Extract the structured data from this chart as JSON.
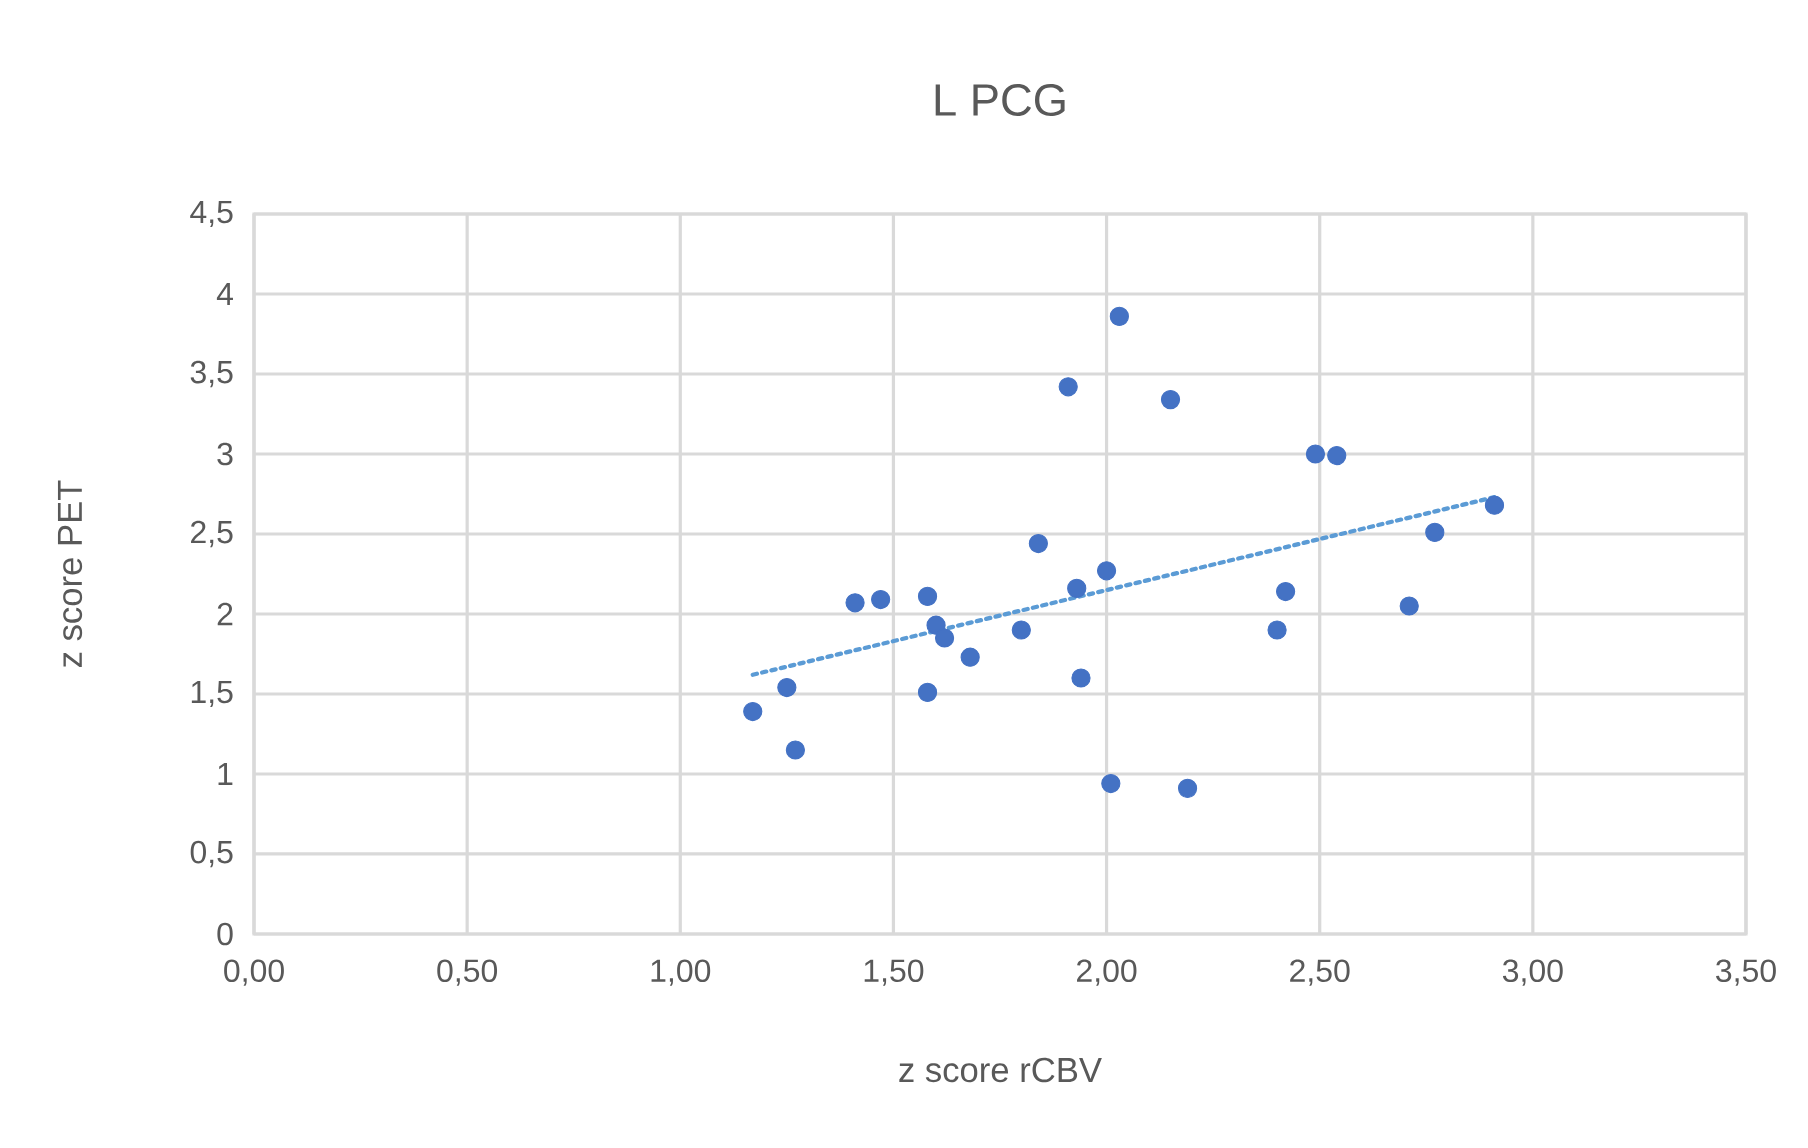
{
  "chart_data": {
    "type": "scatter",
    "title": "L PCG",
    "xlabel": "z score rCBV",
    "ylabel": "z score PET",
    "series": [
      {
        "type": "scatter",
        "color": "#4472c4",
        "marker": "circle",
        "x": [
          1.17,
          1.25,
          1.27,
          1.41,
          1.47,
          1.58,
          1.6,
          1.62,
          1.58,
          1.68,
          1.8,
          1.84,
          1.91,
          1.93,
          1.94,
          2.0,
          2.03,
          2.01,
          2.15,
          2.19,
          2.4,
          2.42,
          2.49,
          2.54,
          2.71,
          2.77,
          2.91
        ],
        "values": [
          1.39,
          1.54,
          1.15,
          2.07,
          2.09,
          2.11,
          1.93,
          1.85,
          1.51,
          1.73,
          1.9,
          2.44,
          3.42,
          2.16,
          1.6,
          2.27,
          3.86,
          0.94,
          3.34,
          0.91,
          1.9,
          2.14,
          3.0,
          2.99,
          2.05,
          2.51,
          2.68
        ]
      },
      {
        "type": "line",
        "color": "#5b9bd5",
        "marker": "none",
        "line_style": "dotted",
        "x": [
          1.17,
          2.91
        ],
        "values": [
          1.62,
          2.73
        ]
      }
    ],
    "xlim": [
      0,
      3.5
    ],
    "ylim": [
      0,
      4.5
    ],
    "xticks": [
      {
        "value": 0,
        "label": "0,00"
      },
      {
        "value": 0.5,
        "label": "0,50"
      },
      {
        "value": 1,
        "label": "1,00"
      },
      {
        "value": 1.5,
        "label": "1,50"
      },
      {
        "value": 2,
        "label": "2,00"
      },
      {
        "value": 2.5,
        "label": "2,50"
      },
      {
        "value": 3,
        "label": "3,00"
      },
      {
        "value": 3.5,
        "label": "3,50"
      }
    ],
    "yticks": [
      0,
      {
        "value": 0.5,
        "label": "0,5"
      },
      1,
      {
        "value": 1.5,
        "label": "1,5"
      },
      2,
      {
        "value": 2.5,
        "label": "2,5"
      },
      3,
      {
        "value": 3.5,
        "label": "3,5"
      },
      4,
      {
        "value": 4.5,
        "label": "4,5"
      }
    ],
    "grid": true
  }
}
